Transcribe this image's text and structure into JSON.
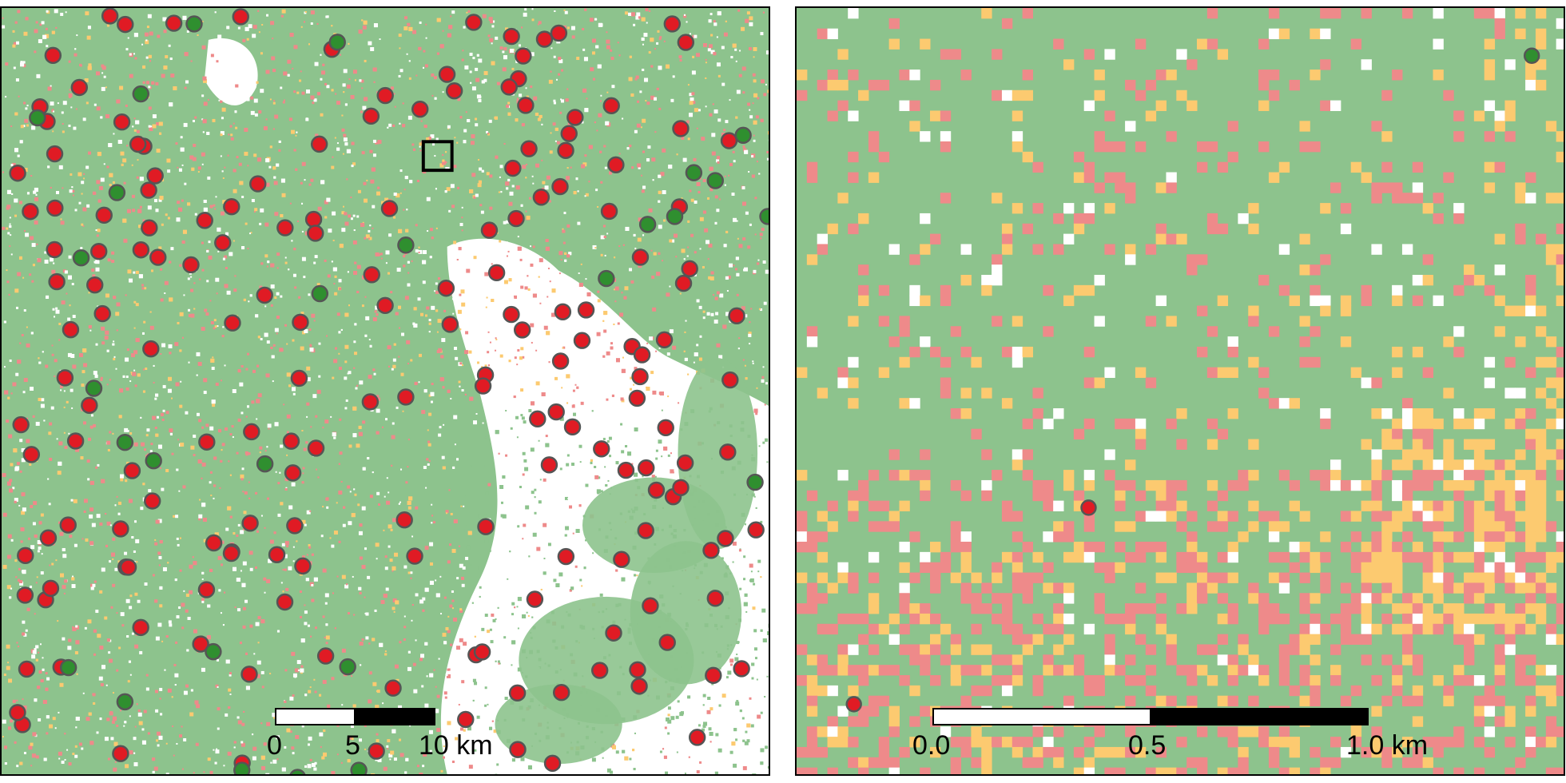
{
  "colors": {
    "forest": "#8dc38d",
    "agriculture": "#ee8a8a",
    "shrub": "#fcca70",
    "bare": "#ffffff",
    "point_red": "#e01b24",
    "point_green": "#2f8f2f",
    "point_outline": "#555555"
  },
  "maps": [
    {
      "name": "overview",
      "scalebar": {
        "ticks": [
          "0",
          "5",
          "10 km"
        ]
      }
    },
    {
      "name": "detail",
      "scalebar": {
        "ticks": [
          "0.0",
          "0.5",
          "1.0 km"
        ]
      }
    }
  ]
}
